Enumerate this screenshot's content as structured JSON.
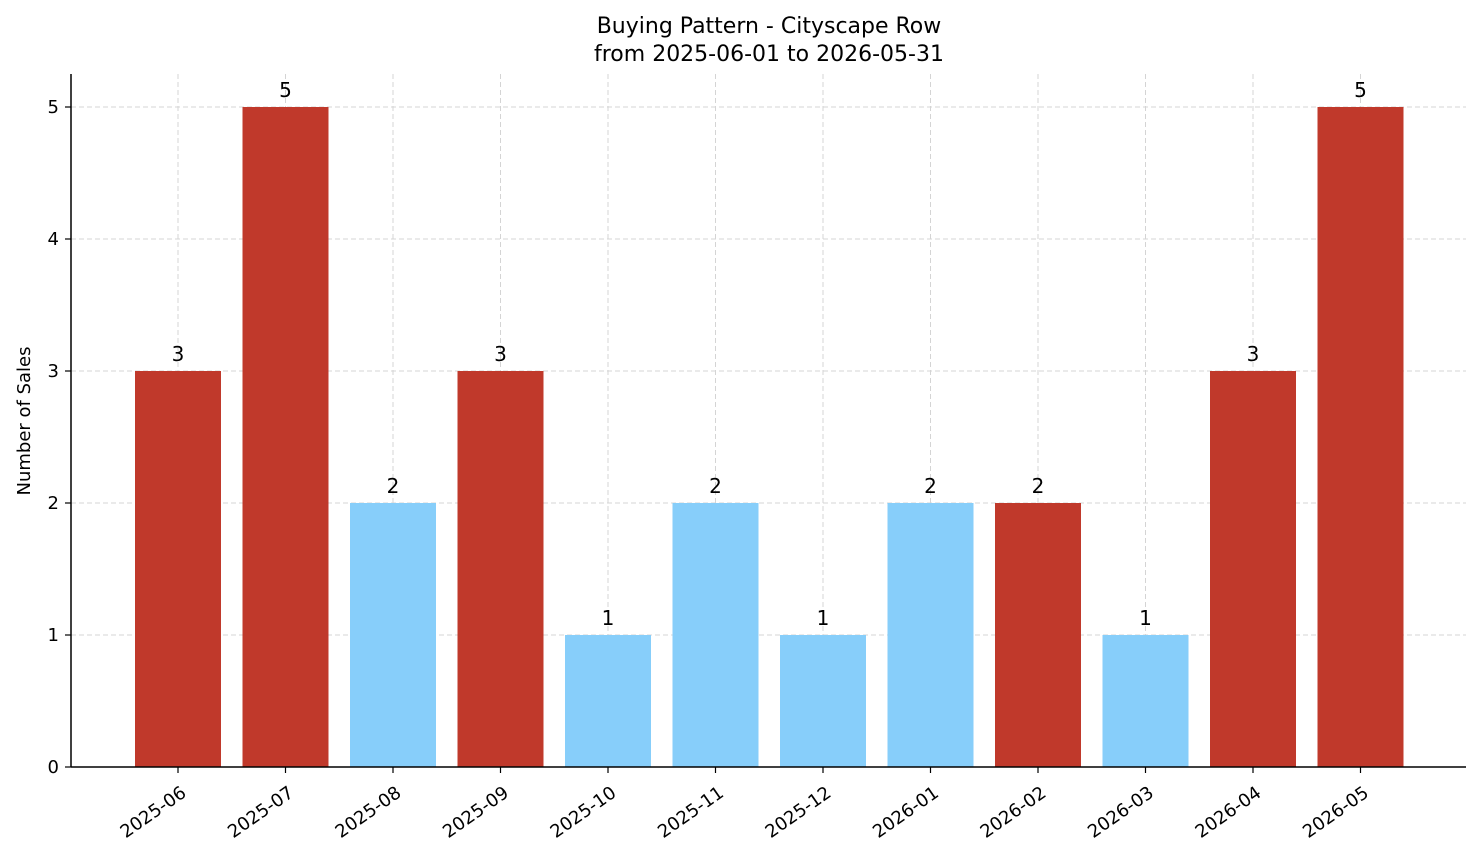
{
  "chart_data": {
    "type": "bar",
    "title_lines": [
      "Buying Pattern - Cityscape Row",
      "from 2025-06-01 to 2026-05-31"
    ],
    "xlabel": "",
    "ylabel": "Number of Sales",
    "categories": [
      "2025-06",
      "2025-07",
      "2025-08",
      "2025-09",
      "2025-10",
      "2025-11",
      "2025-12",
      "2026-01",
      "2026-02",
      "2026-03",
      "2026-04",
      "2026-05"
    ],
    "values": [
      3,
      5,
      2,
      3,
      1,
      2,
      1,
      2,
      2,
      1,
      3,
      5
    ],
    "bar_colors": [
      "#c0392b",
      "#c0392b",
      "#87cefa",
      "#c0392b",
      "#87cefa",
      "#87cefa",
      "#87cefa",
      "#87cefa",
      "#c0392b",
      "#87cefa",
      "#c0392b",
      "#c0392b"
    ],
    "data_labels": [
      "3",
      "5",
      "2",
      "3",
      "1",
      "2",
      "1",
      "2",
      "2",
      "1",
      "3",
      "5"
    ],
    "ylim": [
      0,
      5.25
    ],
    "yticks": [
      0,
      1,
      2,
      3,
      4,
      5
    ],
    "ytick_labels": [
      "0",
      "1",
      "2",
      "3",
      "4",
      "5"
    ],
    "grid": true,
    "legend": "none"
  }
}
